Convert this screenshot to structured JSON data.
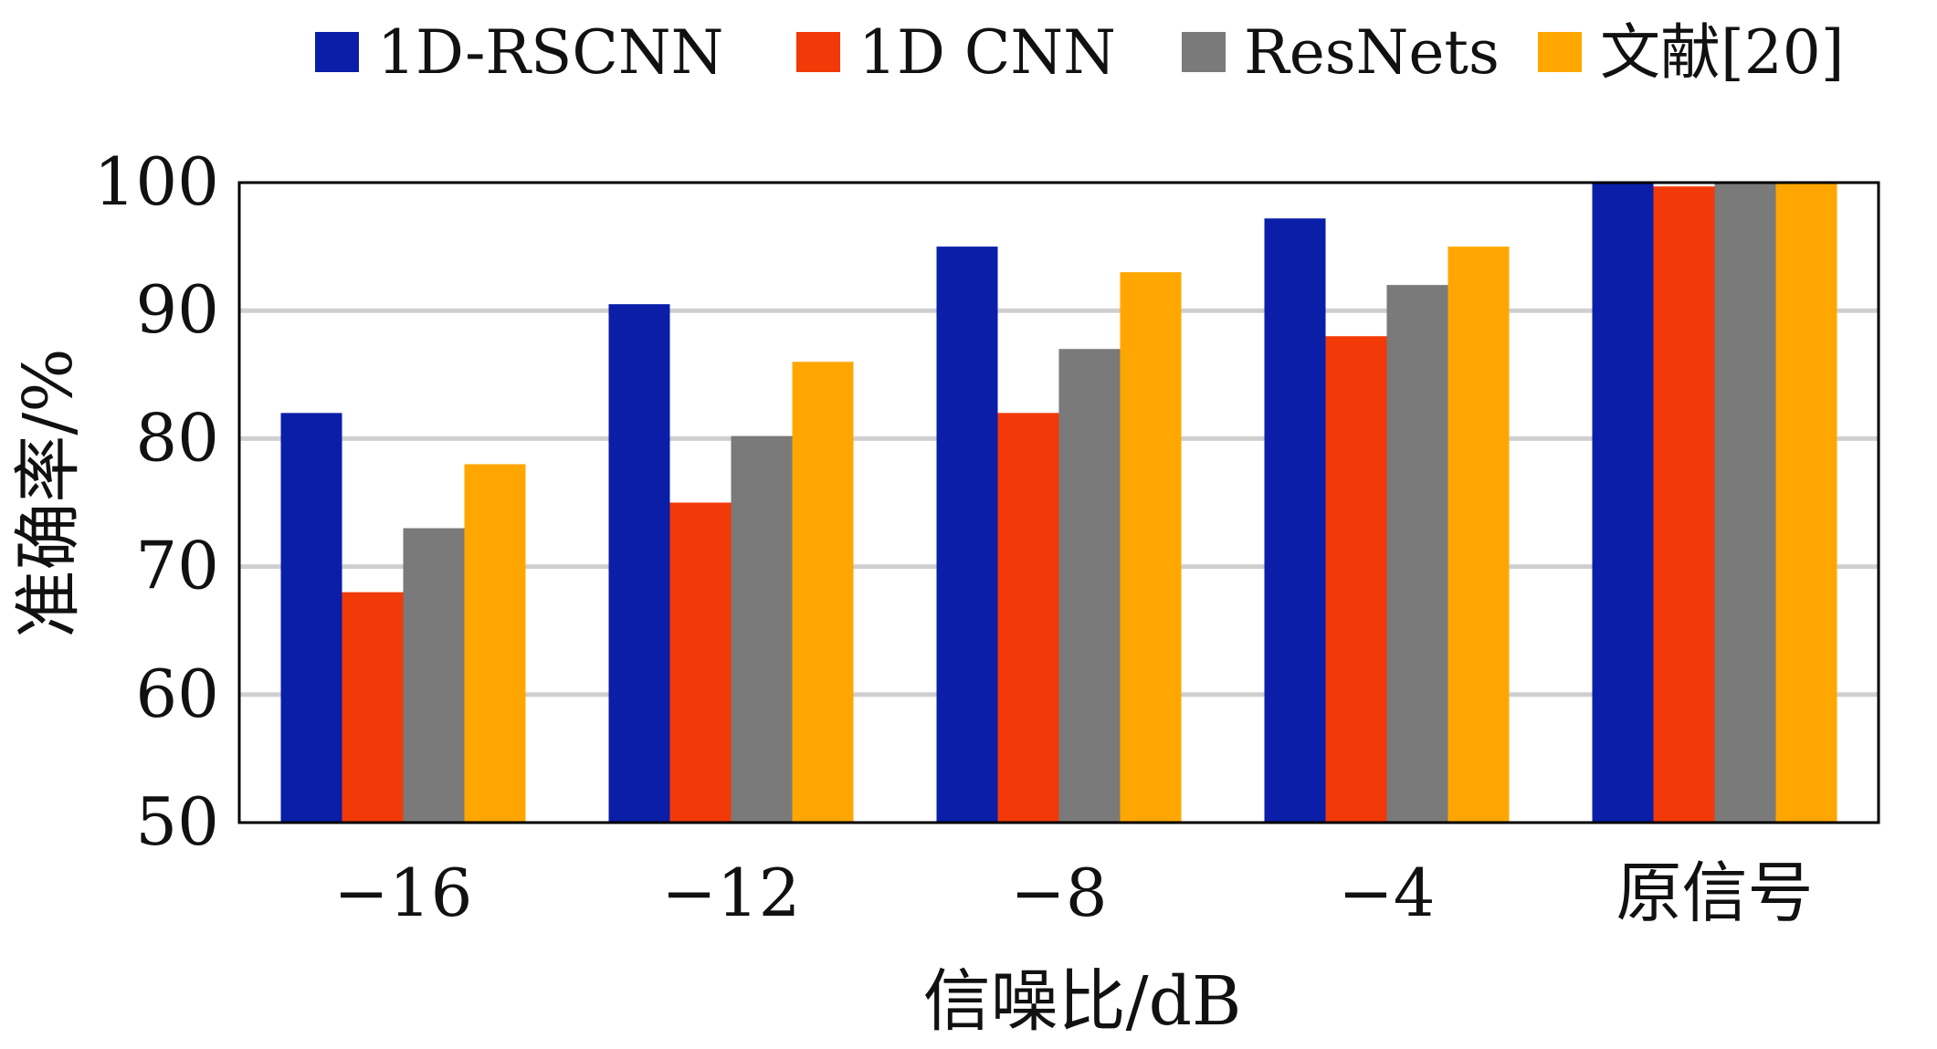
{
  "chart_data": {
    "type": "bar",
    "categories": [
      "−16",
      "−12",
      "−8",
      "−4",
      "原信号"
    ],
    "series": [
      {
        "name": "1D-RSCNN",
        "color": "#0A1EA8",
        "values": [
          82,
          90.5,
          95,
          97.2,
          100
        ]
      },
      {
        "name": "1D CNN",
        "color": "#F23A08",
        "values": [
          68,
          75,
          82,
          88,
          99.7
        ]
      },
      {
        "name": "ResNets",
        "color": "#7A7A7A",
        "values": [
          73,
          80.2,
          87,
          92,
          100
        ]
      },
      {
        "name": "文献[20]",
        "color": "#FFA700",
        "values": [
          78,
          86,
          93,
          95,
          100
        ]
      }
    ],
    "xlabel": "信噪比/dB",
    "ylabel": "准确率/%",
    "ylim": [
      50,
      100
    ],
    "yticks": [
      "50",
      "60",
      "70",
      "80",
      "90",
      "100"
    ],
    "grid": true,
    "legend_position": "top"
  }
}
